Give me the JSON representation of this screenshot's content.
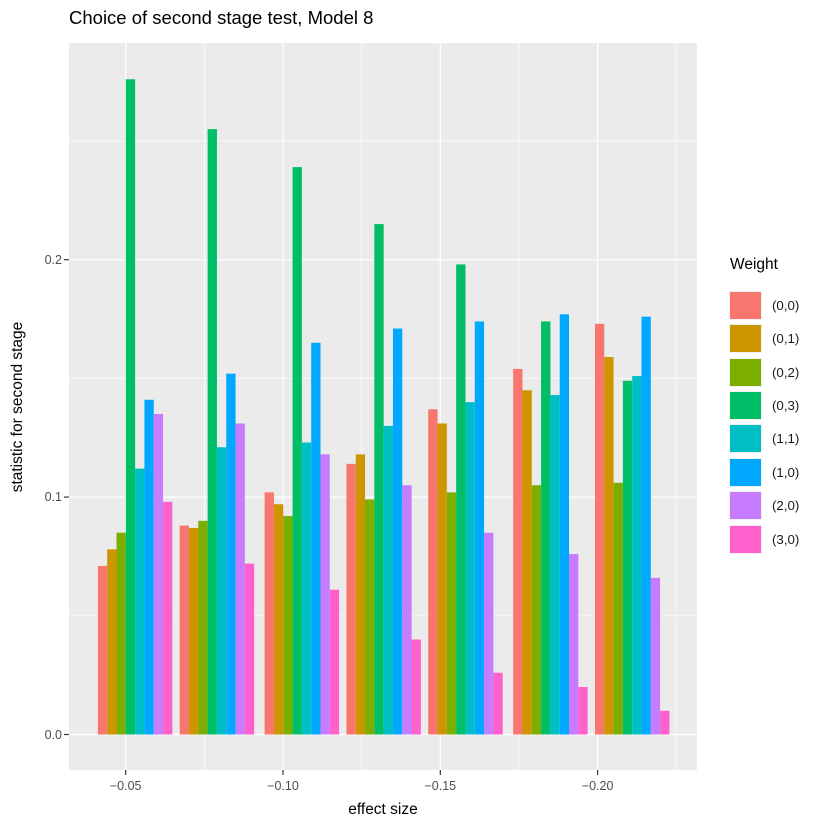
{
  "title": "Choice of second stage test, Model 8",
  "chart_data": {
    "type": "bar",
    "subtype": "grouped-dodged",
    "title": "Choice of second stage test, Model 8",
    "xlabel": "effect size",
    "ylabel": "statistic for second stage",
    "legend_title": "Weight",
    "legend_position": "right",
    "grid": true,
    "x": [
      -0.053,
      -0.079,
      -0.106,
      -0.132,
      -0.158,
      -0.185,
      -0.211
    ],
    "series": [
      {
        "name": "(0,0)",
        "color": "#F8766D",
        "values": [
          0.071,
          0.088,
          0.102,
          0.114,
          0.137,
          0.154,
          0.173
        ]
      },
      {
        "name": "(0,1)",
        "color": "#CD9600",
        "values": [
          0.078,
          0.087,
          0.097,
          0.118,
          0.131,
          0.145,
          0.159
        ]
      },
      {
        "name": "(0,2)",
        "color": "#7CAE00",
        "values": [
          0.085,
          0.09,
          0.092,
          0.099,
          0.102,
          0.105,
          0.106
        ]
      },
      {
        "name": "(0,3)",
        "color": "#00BE67",
        "values": [
          0.276,
          0.255,
          0.239,
          0.215,
          0.198,
          0.174,
          0.149
        ]
      },
      {
        "name": "(1,1)",
        "color": "#00BFC4",
        "values": [
          0.112,
          0.121,
          0.123,
          0.13,
          0.14,
          0.143,
          0.151
        ]
      },
      {
        "name": "(1,0)",
        "color": "#00A9FF",
        "values": [
          0.141,
          0.152,
          0.165,
          0.171,
          0.174,
          0.177,
          0.176
        ]
      },
      {
        "name": "(2,0)",
        "color": "#C77CFF",
        "values": [
          0.135,
          0.131,
          0.118,
          0.105,
          0.085,
          0.076,
          0.066
        ]
      },
      {
        "name": "(3,0)",
        "color": "#FF61CC",
        "values": [
          0.098,
          0.072,
          0.061,
          0.04,
          0.026,
          0.02,
          0.01
        ]
      }
    ],
    "x_ticks": {
      "values": [
        -0.05,
        -0.1,
        -0.15,
        -0.2
      ],
      "labels": [
        "−0.05",
        "−0.10",
        "−0.15",
        "−0.20"
      ]
    },
    "x_minor": [
      -0.075,
      -0.125,
      -0.175,
      -0.225
    ],
    "y_ticks": {
      "values": [
        0.0,
        0.1,
        0.2
      ],
      "labels": [
        "0.0",
        "0.1",
        "0.2"
      ]
    },
    "y_minor": [
      0.05,
      0.15,
      0.25
    ],
    "ylim": [
      -0.015,
      0.291
    ],
    "xlim": [
      -0.032,
      -0.2315
    ],
    "colors": {
      "background": "#FFFFFF",
      "panel": "#EBEBEB",
      "gridline": "#FFFFFF",
      "tick_mark": "#333333",
      "tick_label": "#4D4D4D",
      "text": "#000000"
    }
  }
}
